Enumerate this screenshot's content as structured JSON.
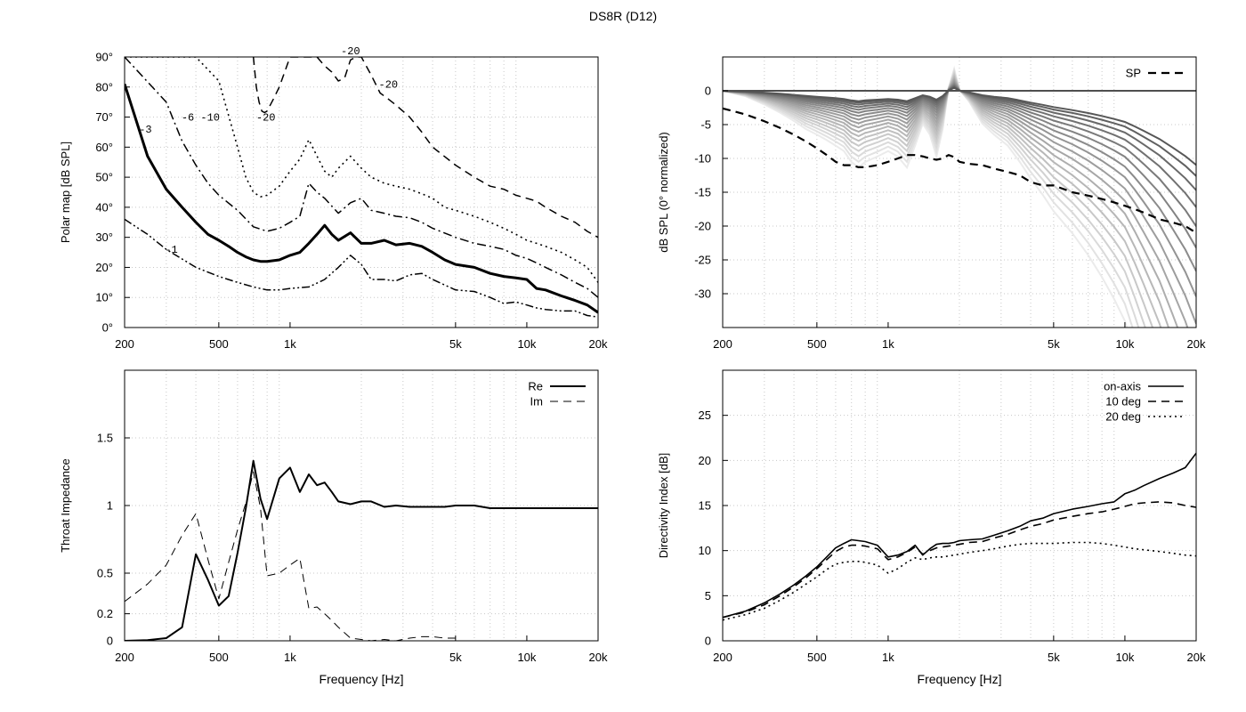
{
  "title": "DS8R (D12)",
  "freq_axis": {
    "min": 200,
    "max": 20000,
    "scale": "log",
    "tick_values": [
      200,
      500,
      1000,
      5000,
      10000,
      20000
    ],
    "tick_labels": [
      "200",
      "500",
      "1k",
      "5k",
      "10k",
      "20k"
    ],
    "minor_grid": true
  },
  "chart_data": [
    {
      "id": "polar",
      "type": "line",
      "xlabel": "",
      "ylabel": "Polar map [dB SPL]",
      "ylim": [
        0,
        90
      ],
      "yticks": [
        0,
        10,
        20,
        30,
        40,
        50,
        60,
        70,
        80,
        90
      ],
      "yticklabels": [
        "0°",
        "10°",
        "20°",
        "30°",
        "40°",
        "50°",
        "60°",
        "70°",
        "80°",
        "90°"
      ],
      "grid": true,
      "series": [
        {
          "name": "-1",
          "style": "dashdotdot",
          "width": 1.5,
          "x": [
            200,
            250,
            300,
            400,
            500,
            600,
            700,
            800,
            900,
            1000,
            1200,
            1400,
            1600,
            1800,
            2000,
            2200,
            2500,
            2800,
            3200,
            3600,
            4000,
            5000,
            6000,
            7000,
            8000,
            9000,
            10000,
            11000,
            12000,
            14000,
            16000,
            18000,
            20000
          ],
          "y": [
            36,
            31,
            26,
            20,
            17,
            15,
            13.5,
            12.5,
            12.5,
            13,
            13.5,
            16,
            20,
            24,
            21,
            16,
            16,
            15.5,
            17.5,
            18,
            16,
            12.5,
            12,
            10,
            8,
            8.5,
            7.5,
            6.5,
            6,
            5.5,
            5.5,
            4,
            3.5
          ]
        },
        {
          "name": "-3",
          "style": "solid",
          "width": 3,
          "x": [
            200,
            250,
            300,
            350,
            400,
            450,
            500,
            550,
            600,
            650,
            700,
            750,
            800,
            900,
            1000,
            1100,
            1200,
            1300,
            1400,
            1500,
            1600,
            1800,
            2000,
            2200,
            2500,
            2800,
            3200,
            3600,
            4000,
            4500,
            5000,
            6000,
            7000,
            8000,
            9000,
            10000,
            11000,
            12000,
            14000,
            16000,
            18000,
            20000
          ],
          "y": [
            81,
            57,
            46,
            40,
            35,
            31,
            29,
            27,
            25,
            23.5,
            22.5,
            22,
            22,
            22.5,
            24,
            25,
            28,
            31,
            34,
            31,
            29,
            31.5,
            28,
            28,
            29,
            27.5,
            28,
            27,
            25,
            22.5,
            21,
            20,
            18,
            17,
            16.5,
            16,
            13,
            12.5,
            10.5,
            9,
            7.5,
            5
          ]
        },
        {
          "name": "-6",
          "style": "dashdot",
          "width": 1.5,
          "x": [
            200,
            300,
            350,
            400,
            450,
            500,
            600,
            700,
            800,
            900,
            1000,
            1100,
            1200,
            1300,
            1400,
            1600,
            1800,
            2000,
            2200,
            2500,
            2800,
            3200,
            3600,
            4000,
            5000,
            6000,
            7000,
            8000,
            9000,
            10000,
            11000,
            12000,
            14000,
            16000,
            18000,
            20000
          ],
          "y": [
            90,
            75,
            62,
            54,
            48,
            44,
            39,
            33.5,
            32,
            33,
            35,
            37,
            48,
            45,
            43,
            38,
            41.5,
            43,
            39,
            38,
            37,
            36.5,
            35,
            33,
            30,
            28,
            27,
            26,
            24,
            23,
            21.5,
            20,
            17.5,
            15,
            13,
            10
          ]
        },
        {
          "name": "-10",
          "style": "dotted",
          "width": 1.6,
          "x": [
            200,
            300,
            400,
            500,
            600,
            650,
            700,
            750,
            800,
            900,
            1000,
            1100,
            1200,
            1300,
            1400,
            1500,
            1600,
            1800,
            2000,
            2200,
            2500,
            2800,
            3200,
            3600,
            4000,
            4500,
            5000,
            6000,
            7000,
            8000,
            9000,
            10000,
            11000,
            12000,
            14000,
            16000,
            18000,
            20000
          ],
          "y": [
            90,
            90,
            90,
            82,
            60,
            50,
            45,
            43.5,
            44,
            47,
            52,
            56,
            62.5,
            57,
            52,
            50,
            53,
            57,
            53,
            50,
            48,
            47,
            46,
            44.5,
            43,
            40,
            39,
            37,
            35,
            33,
            31,
            29,
            28,
            27,
            25,
            22.5,
            20,
            15
          ]
        },
        {
          "name": "-20",
          "style": "dashed",
          "width": 1.5,
          "x": [
            700,
            720,
            740,
            760,
            780,
            800,
            850,
            900,
            1000,
            1100,
            1200,
            1300,
            1400,
            1500,
            1600,
            1700,
            1800,
            1900,
            2000,
            2200,
            2400,
            2600,
            2800,
            3200,
            3600,
            4000,
            5000,
            6000,
            7000,
            8000,
            9000,
            10000,
            11000,
            12000,
            14000,
            16000,
            18000,
            20000
          ],
          "y": [
            90,
            80,
            75,
            72,
            71.5,
            72,
            76,
            80,
            90,
            90,
            90,
            90,
            87,
            85,
            82,
            83,
            89,
            90,
            90,
            84,
            78,
            76,
            74,
            70,
            65,
            60,
            54,
            50,
            47,
            46,
            44,
            43,
            42,
            40,
            37,
            35,
            32,
            30
          ]
        }
      ],
      "annotations": [
        {
          "text": "-1",
          "x": 315,
          "y": 26
        },
        {
          "text": "-3",
          "x": 245,
          "y": 66
        },
        {
          "text": "-6",
          "x": 370,
          "y": 70
        },
        {
          "text": "-10",
          "x": 460,
          "y": 70
        },
        {
          "text": "-20",
          "x": 790,
          "y": 70
        },
        {
          "text": "-20",
          "x": 1800,
          "y": 92
        },
        {
          "text": "-20",
          "x": 2600,
          "y": 81
        }
      ]
    },
    {
      "id": "spl",
      "type": "line",
      "xlabel": "",
      "ylabel": "dB SPL (0° normalized)",
      "ylim": [
        -35,
        5
      ],
      "yticks": [
        0,
        -5,
        -10,
        -15,
        -20,
        -25,
        -30
      ],
      "yticklabels": [
        "0",
        "-5",
        "-10",
        "-15",
        "-20",
        "-25",
        "-30"
      ],
      "grid": true,
      "legend": {
        "position": "top-right",
        "entries": [
          "SP"
        ]
      },
      "x": [
        200,
        250,
        300,
        350,
        400,
        450,
        500,
        550,
        600,
        650,
        700,
        750,
        800,
        900,
        1000,
        1100,
        1200,
        1300,
        1400,
        1500,
        1600,
        1700,
        1800,
        1900,
        2000,
        2200,
        2500,
        2800,
        3200,
        3600,
        4000,
        4500,
        5000,
        6000,
        7000,
        8000,
        9000,
        10000,
        11000,
        12000,
        14000,
        16000,
        18000,
        20000
      ],
      "family": {
        "count": 19,
        "description": "off-axis responses 5° to 90° in 5° steps, normalized to 0°",
        "base_shape": [
          0,
          -0.1,
          -0.25,
          -0.4,
          -0.55,
          -0.7,
          -0.8,
          -0.9,
          -1,
          -1.1,
          -1.3,
          -1.4,
          -1.3,
          -1.2,
          -1.1,
          -1.2,
          -1.4,
          -1.0,
          -0.6,
          -0.8,
          -1.2,
          -0.7,
          0.05,
          0.4,
          0.02,
          -0.2,
          -0.6,
          -0.8,
          -1.0,
          -1.3,
          -1.6,
          -1.9,
          -2.2,
          -2.6,
          -3.0,
          -3.4,
          -3.8,
          -4.2,
          -4.8,
          -5.4,
          -6.5,
          -7.7,
          -8.8,
          -10
        ],
        "max_gain": 6.5
      },
      "series": [
        {
          "name": "SP",
          "style": "dashed",
          "width": 2.2,
          "y": [
            -2.6,
            -3.5,
            -4.5,
            -5.5,
            -6.5,
            -7.5,
            -8.5,
            -9.5,
            -10.5,
            -11,
            -11,
            -11.3,
            -11.3,
            -11,
            -10.5,
            -10,
            -9.5,
            -9.5,
            -9.7,
            -10,
            -10.2,
            -10,
            -9.5,
            -9.8,
            -10.5,
            -10.8,
            -11,
            -11.5,
            -12,
            -12.5,
            -13.5,
            -14,
            -14,
            -15,
            -15.5,
            -16,
            -16.5,
            -17,
            -17.5,
            -18,
            -19,
            -19.5,
            -20,
            -21
          ]
        }
      ]
    },
    {
      "id": "impedance",
      "type": "line",
      "xlabel": "Frequency [Hz]",
      "ylabel": "Throat Impedance",
      "ylim": [
        0,
        2
      ],
      "yticks": [
        0,
        0.2,
        0.5,
        1,
        1.5
      ],
      "yticklabels": [
        "0",
        "0.2",
        "0.5",
        "1",
        "1.5"
      ],
      "grid": true,
      "legend": {
        "position": "top-right",
        "entries": [
          "Re",
          "Im"
        ]
      },
      "series": [
        {
          "name": "Re",
          "style": "solid",
          "width": 2,
          "x": [
            200,
            250,
            300,
            350,
            400,
            450,
            500,
            550,
            600,
            650,
            700,
            750,
            800,
            900,
            1000,
            1100,
            1200,
            1300,
            1400,
            1500,
            1600,
            1800,
            2000,
            2200,
            2500,
            2800,
            3200,
            3600,
            4000,
            4500,
            5000,
            6000,
            7000,
            8000,
            9000,
            10000,
            11000,
            12000,
            14000,
            16000,
            18000,
            20000
          ],
          "y": [
            0,
            0.005,
            0.02,
            0.1,
            0.64,
            0.45,
            0.26,
            0.33,
            0.65,
            0.98,
            1.33,
            1.05,
            0.9,
            1.2,
            1.28,
            1.1,
            1.23,
            1.15,
            1.17,
            1.1,
            1.03,
            1.01,
            1.03,
            1.03,
            0.99,
            1.0,
            0.99,
            0.99,
            0.99,
            0.99,
            1.0,
            1.0,
            0.98,
            0.98,
            0.98,
            0.98,
            0.98,
            0.98,
            0.98,
            0.98,
            0.98,
            0.98
          ]
        },
        {
          "name": "Im",
          "style": "dashed",
          "width": 1,
          "x": [
            200,
            250,
            300,
            350,
            400,
            450,
            500,
            550,
            600,
            650,
            700,
            750,
            800,
            900,
            1000,
            1100,
            1200,
            1300,
            1400,
            1500,
            1600,
            1800,
            2000,
            2200,
            2500,
            2800,
            3200,
            3600,
            4000,
            4500,
            5000
          ],
          "y": [
            0.29,
            0.42,
            0.56,
            0.78,
            0.94,
            0.6,
            0.31,
            0.58,
            0.82,
            1.02,
            1.25,
            0.98,
            0.48,
            0.5,
            0.56,
            0.61,
            0.24,
            0.25,
            0.2,
            0.15,
            0.1,
            0.02,
            0.01,
            0.0,
            0.01,
            0.0,
            0.02,
            0.03,
            0.03,
            0.02,
            0.02
          ]
        }
      ]
    },
    {
      "id": "di",
      "type": "line",
      "xlabel": "Frequency [Hz]",
      "ylabel": "Directivity Index [dB]",
      "ylim": [
        0,
        30
      ],
      "yticks": [
        0,
        5,
        10,
        15,
        20,
        25
      ],
      "yticklabels": [
        "0",
        "5",
        "10",
        "15",
        "20",
        "25"
      ],
      "grid": true,
      "legend": {
        "position": "top-right",
        "entries": [
          "on-axis",
          "10 deg",
          "20 deg"
        ]
      },
      "x": [
        200,
        250,
        300,
        350,
        400,
        450,
        500,
        550,
        600,
        650,
        700,
        750,
        800,
        900,
        1000,
        1100,
        1200,
        1300,
        1400,
        1500,
        1600,
        1700,
        1800,
        1900,
        2000,
        2200,
        2500,
        2800,
        3200,
        3600,
        4000,
        4500,
        5000,
        6000,
        7000,
        8000,
        9000,
        10000,
        11000,
        12000,
        14000,
        16000,
        18000,
        20000
      ],
      "series": [
        {
          "name": "on-axis",
          "style": "solid",
          "width": 1.6,
          "y": [
            2.6,
            3.3,
            4.2,
            5.2,
            6.2,
            7.2,
            8.2,
            9.3,
            10.3,
            10.8,
            11.2,
            11.1,
            11.0,
            10.6,
            9.3,
            9.5,
            9.9,
            10.6,
            9.5,
            10.2,
            10.7,
            10.8,
            10.8,
            10.9,
            11.1,
            11.2,
            11.3,
            11.7,
            12.2,
            12.7,
            13.3,
            13.6,
            14.1,
            14.6,
            14.9,
            15.2,
            15.4,
            16.3,
            16.7,
            17.2,
            18.0,
            18.6,
            19.2,
            20.8
          ]
        },
        {
          "name": "10 deg",
          "style": "dashed",
          "width": 1.6,
          "y": [
            2.6,
            3.2,
            4.0,
            5.0,
            6.0,
            7.0,
            8.0,
            9.0,
            9.9,
            10.4,
            10.6,
            10.6,
            10.5,
            10.2,
            9.0,
            9.3,
            9.8,
            10.4,
            9.6,
            10.0,
            10.3,
            10.4,
            10.5,
            10.6,
            10.7,
            10.9,
            11.0,
            11.4,
            11.8,
            12.3,
            12.7,
            13.0,
            13.4,
            13.8,
            14.1,
            14.3,
            14.6,
            14.9,
            15.2,
            15.3,
            15.4,
            15.3,
            15.0,
            14.8
          ]
        },
        {
          "name": "20 deg",
          "style": "dotted",
          "width": 1.6,
          "y": [
            2.3,
            2.9,
            3.6,
            4.5,
            5.4,
            6.3,
            7.1,
            7.9,
            8.5,
            8.7,
            8.8,
            8.8,
            8.7,
            8.4,
            7.5,
            8.0,
            8.7,
            9.2,
            9.0,
            9.2,
            9.3,
            9.3,
            9.4,
            9.5,
            9.6,
            9.8,
            10.0,
            10.2,
            10.5,
            10.7,
            10.8,
            10.8,
            10.8,
            10.9,
            10.9,
            10.8,
            10.6,
            10.4,
            10.2,
            10.1,
            9.9,
            9.7,
            9.5,
            9.4
          ]
        }
      ]
    }
  ]
}
